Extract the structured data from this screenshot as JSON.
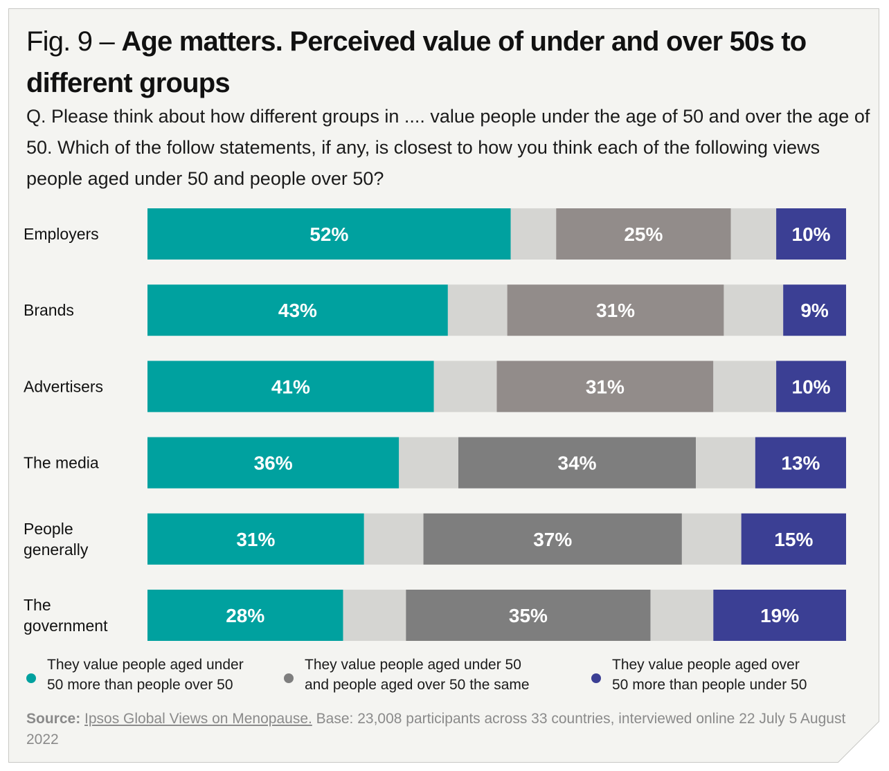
{
  "title": {
    "fig": "Fig. 9 – ",
    "main": "Age matters. Perceived value of under and over 50s to different groups"
  },
  "question": "Q. Please think about how different groups in .... value people under the age of 50 and over the age of 50. Which of the follow statements, if any, is closest to how you think each of the following views people aged under 50 and people over 50?",
  "colors": {
    "under": "#00a19f",
    "same_dark": "#7e7e7e",
    "same_light": "#928c8a",
    "over": "#3b3f94",
    "gap": "#d5d5d2"
  },
  "chart_data": {
    "type": "bar",
    "orientation": "horizontal",
    "stacked": true,
    "categories": [
      "Employers",
      "Brands",
      "Advertisers",
      "The media",
      "People generally",
      "The government"
    ],
    "category_lines": [
      [
        "Employers"
      ],
      [
        "Brands"
      ],
      [
        "Advertisers"
      ],
      [
        "The media"
      ],
      [
        "People",
        "generally"
      ],
      [
        "The",
        "government"
      ]
    ],
    "series": [
      {
        "name": "They value people aged under 50 more than people over 50",
        "values": [
          52,
          43,
          41,
          36,
          31,
          28
        ],
        "labels": [
          "52%",
          "43%",
          "41%",
          "36%",
          "31%",
          "28%"
        ]
      },
      {
        "name": "They value people aged under 50 and people aged over 50 the same",
        "values": [
          25,
          31,
          31,
          34,
          37,
          35
        ],
        "labels": [
          "25%",
          "31%",
          "31%",
          "34%",
          "37%",
          "35%"
        ]
      },
      {
        "name": "They value people aged over 50 more than people under 50",
        "values": [
          10,
          9,
          10,
          13,
          15,
          19
        ],
        "labels": [
          "10%",
          "9%",
          "10%",
          "13%",
          "15%",
          "19%"
        ]
      }
    ],
    "xlim": [
      0,
      100
    ],
    "legend_position": "bottom"
  },
  "legend": [
    {
      "lines": [
        "They value people aged under",
        "50 more than people over 50"
      ]
    },
    {
      "lines": [
        "They value people aged under 50",
        "and people aged over 50 the same"
      ]
    },
    {
      "lines": [
        "They value people aged over",
        "50 more than people under 50"
      ]
    }
  ],
  "source": {
    "label": "Source:",
    "link": "Ipsos Global Views on Menopause.",
    "text": " Base: 23,008 participants across 33 countries, interviewed online 22 July 5 August 2022"
  }
}
